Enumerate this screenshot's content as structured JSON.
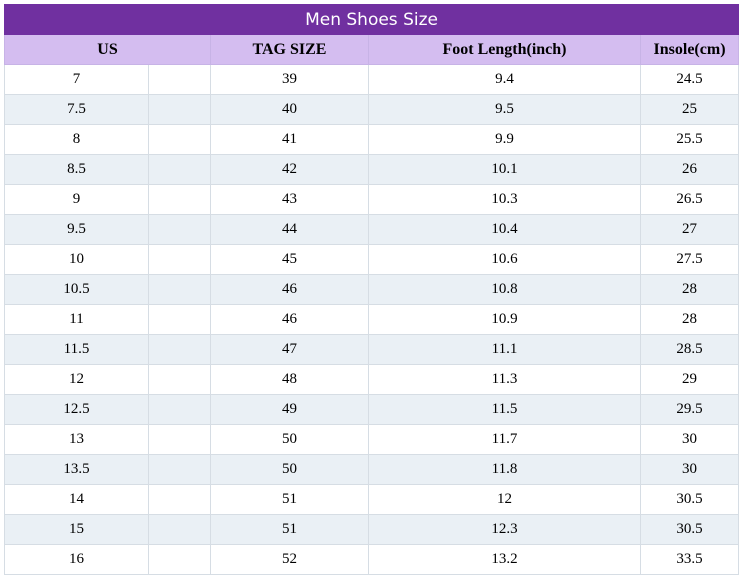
{
  "title": "Men Shoes Size",
  "columns": [
    "US",
    "TAG SIZE",
    "Foot Length(inch)",
    "Insole(cm)"
  ],
  "rows": [
    [
      "7",
      "39",
      "9.4",
      "24.5"
    ],
    [
      "7.5",
      "40",
      "9.5",
      "25"
    ],
    [
      "8",
      "41",
      "9.9",
      "25.5"
    ],
    [
      "8.5",
      "42",
      "10.1",
      "26"
    ],
    [
      "9",
      "43",
      "10.3",
      "26.5"
    ],
    [
      "9.5",
      "44",
      "10.4",
      "27"
    ],
    [
      "10",
      "45",
      "10.6",
      "27.5"
    ],
    [
      "10.5",
      "46",
      "10.8",
      "28"
    ],
    [
      "11",
      "46",
      "10.9",
      "28"
    ],
    [
      "11.5",
      "47",
      "11.1",
      "28.5"
    ],
    [
      "12",
      "48",
      "11.3",
      "29"
    ],
    [
      "12.5",
      "49",
      "11.5",
      "29.5"
    ],
    [
      "13",
      "50",
      "11.7",
      "30"
    ],
    [
      "13.5",
      "50",
      "11.8",
      "30"
    ],
    [
      "14",
      "51",
      "12",
      "30.5"
    ],
    [
      "15",
      "51",
      "12.3",
      "30.5"
    ],
    [
      "16",
      "52",
      "13.2",
      "33.5"
    ]
  ],
  "colors": {
    "title_bg": "#7030a0",
    "header_bg": "#d4bdf0",
    "stripe_bg": "#eaf0f5"
  }
}
